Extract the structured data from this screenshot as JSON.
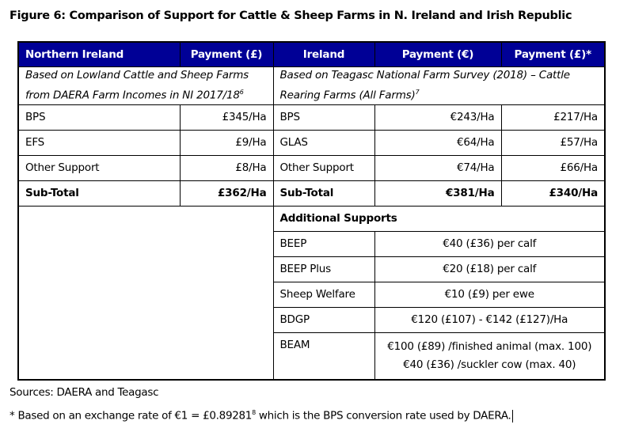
{
  "title": "Figure 6: Comparison of Support for Cattle & Sheep Farms in N. Ireland and Irish Republic",
  "headers": [
    "Northern Ireland",
    "Payment (£)",
    "Ireland",
    "Payment (€)",
    "Payment (£)*"
  ],
  "ni_desc": "Based on Lowland Cattle and Sheep Farms from DAERA Farm Incomes in NI 2017/18",
  "ni_desc_ref": "6",
  "ie_desc": "Based on Teagasc National Farm Survey (2018) – Cattle Rearing Farms (All Farms)",
  "ie_desc_ref": "7",
  "rows": [
    {
      "ni": "BPS",
      "ni_gbp": "£345/Ha",
      "ie": "BPS",
      "ie_eur": "€243/Ha",
      "ie_gbp": "£217/Ha"
    },
    {
      "ni": "EFS",
      "ni_gbp": "£9/Ha",
      "ie": "GLAS",
      "ie_eur": "€64/Ha",
      "ie_gbp": "£57/Ha"
    },
    {
      "ni": "Other Support",
      "ni_gbp": "£8/Ha",
      "ie": "Other Support",
      "ie_eur": "€74/Ha",
      "ie_gbp": "£66/Ha"
    }
  ],
  "subtotal": {
    "ni": "Sub-Total",
    "ni_gbp": "£362/Ha",
    "ie": "Sub-Total",
    "ie_eur": "€381/Ha",
    "ie_gbp": "£340/Ha"
  },
  "additional_label": "Additional Supports",
  "additional": [
    {
      "name": "BEEP",
      "value": "€40 (£36) per calf"
    },
    {
      "name": "BEEP Plus",
      "value": "€20 (£18) per calf"
    },
    {
      "name": "Sheep Welfare",
      "value": "€10 (£9) per ewe"
    },
    {
      "name": "BDGP",
      "value": "€120 (£107) - €142 (£127)/Ha"
    }
  ],
  "beam": {
    "name": "BEAM",
    "line1": "€100 (£89) /finished animal (max. 100)",
    "line2": "€40 (£36) /suckler cow (max. 40)"
  },
  "sources": "Sources: DAERA and Teagasc",
  "note": {
    "pre": "* Based on an exchange rate of €1 = £0.89281",
    "ref": "8",
    "post": " which is the BPS conversion rate used by DAERA."
  },
  "colors": {
    "header_bg": "#000096",
    "header_text": "#ffffff"
  }
}
